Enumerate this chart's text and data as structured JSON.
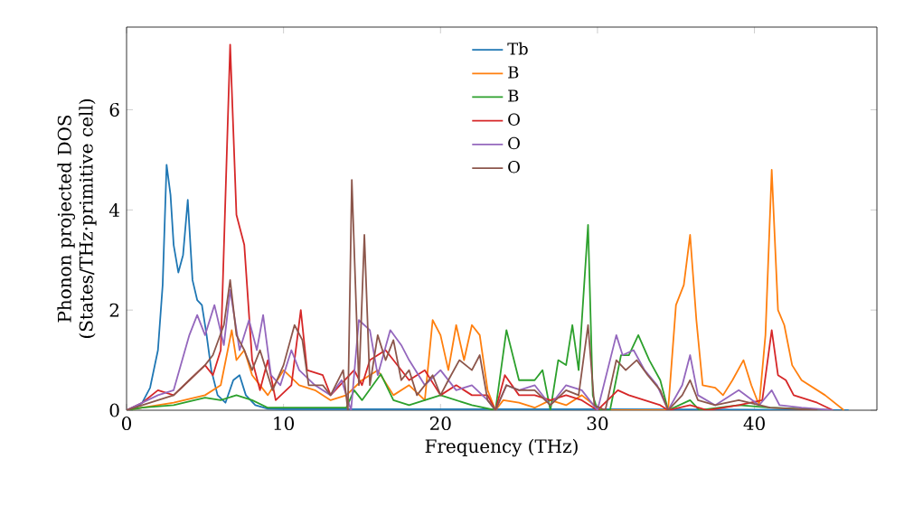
{
  "chart_data": {
    "type": "line",
    "xlabel": "Frequency (THz)",
    "ylabel": "Phonon projected DOS (States/THz·primitive cell)",
    "xlim": [
      0,
      47.8
    ],
    "ylim": [
      0,
      7.65
    ],
    "xticks": [
      0,
      10,
      20,
      30,
      40
    ],
    "yticks": [
      0,
      2,
      4,
      6
    ],
    "legend": "top",
    "series": [
      {
        "name": "Tb",
        "color": "#1f77b4",
        "x": [
          0,
          0.5,
          1,
          1.5,
          2,
          2.3,
          2.55,
          2.8,
          3.0,
          3.3,
          3.6,
          3.9,
          4.2,
          4.5,
          4.8,
          5.1,
          5.4,
          5.8,
          6.3,
          6.8,
          7.2,
          7.6,
          8.2,
          9,
          10,
          15,
          20,
          30,
          40,
          46
        ],
        "values": [
          0,
          0.03,
          0.15,
          0.45,
          1.2,
          2.5,
          4.9,
          4.3,
          3.3,
          2.75,
          3.1,
          4.2,
          2.6,
          2.2,
          2.1,
          1.5,
          0.8,
          0.3,
          0.15,
          0.6,
          0.7,
          0.3,
          0.1,
          0.03,
          0.02,
          0.02,
          0.02,
          0.02,
          0.01,
          0
        ]
      },
      {
        "name": "B",
        "color": "#ff7f0e",
        "x": [
          0,
          1,
          3,
          5,
          6,
          6.7,
          7,
          7.5,
          8,
          9,
          10,
          11,
          12,
          13,
          14,
          15,
          16,
          17,
          18,
          19,
          19.5,
          20,
          20.5,
          21,
          21.5,
          22,
          22.5,
          23,
          23.5,
          24,
          25,
          26,
          27,
          28,
          29,
          30,
          30.5,
          34.5,
          35,
          35.5,
          35.9,
          36.3,
          36.7,
          37.5,
          38,
          38.6,
          39.3,
          39.8,
          40.3,
          40.7,
          41.1,
          41.5,
          41.9,
          42.4,
          43,
          44.5,
          45.7
        ],
        "values": [
          0,
          0.05,
          0.15,
          0.3,
          0.5,
          1.6,
          1.0,
          1.2,
          0.7,
          0.3,
          0.8,
          0.5,
          0.4,
          0.2,
          0.3,
          0.6,
          0.8,
          0.3,
          0.5,
          0.2,
          1.8,
          1.5,
          0.8,
          1.7,
          1.0,
          1.7,
          1.5,
          0.4,
          0,
          0.2,
          0.15,
          0.05,
          0.2,
          0.1,
          0.3,
          0.05,
          0,
          0,
          2.1,
          2.5,
          3.5,
          1.8,
          0.5,
          0.45,
          0.3,
          0.6,
          1.0,
          0.5,
          0.1,
          1.5,
          4.8,
          2.0,
          1.7,
          0.9,
          0.6,
          0.3,
          0
        ]
      },
      {
        "name": "B",
        "color": "#2ca02c",
        "x": [
          0,
          1,
          3,
          5,
          6,
          7,
          8,
          9,
          14,
          14.5,
          15,
          16.2,
          17,
          18,
          20,
          22,
          23.5,
          24.2,
          25,
          26,
          26.5,
          27,
          27.5,
          28,
          28.4,
          28.8,
          29.4,
          29.7,
          30,
          30.8,
          31.5,
          32,
          32.6,
          33.3,
          34,
          34.5,
          35.9,
          36.5,
          39,
          41,
          45
        ],
        "values": [
          0,
          0.05,
          0.1,
          0.25,
          0.2,
          0.3,
          0.2,
          0.05,
          0.05,
          0.4,
          0.2,
          0.72,
          0.2,
          0.1,
          0.3,
          0.1,
          0,
          1.6,
          0.6,
          0.6,
          0.8,
          0,
          1.0,
          0.9,
          1.7,
          0.8,
          3.7,
          0.3,
          0,
          0,
          1.1,
          1.1,
          1.5,
          1.0,
          0.6,
          0,
          0.2,
          0,
          0.1,
          0.05,
          0
        ]
      },
      {
        "name": "O",
        "color": "#d62728",
        "x": [
          0,
          1,
          2,
          3,
          4,
          5,
          5.5,
          6,
          6.6,
          7.0,
          7.5,
          8,
          8.5,
          9,
          9.5,
          10.5,
          11.1,
          11.5,
          12.5,
          13,
          14.5,
          15,
          15.5,
          16.5,
          17,
          18,
          19,
          20,
          21,
          22,
          23,
          23.5,
          24.1,
          25,
          26,
          27,
          28,
          29,
          30,
          31.3,
          32,
          33,
          34,
          34.5,
          35.9,
          37,
          39,
          40.5,
          41.1,
          41.5,
          42,
          42.5,
          44,
          45
        ],
        "values": [
          0,
          0.15,
          0.4,
          0.3,
          0.6,
          0.9,
          0.7,
          1.2,
          7.3,
          3.9,
          3.3,
          1.0,
          0.4,
          1.0,
          0.2,
          0.5,
          2.0,
          0.8,
          0.7,
          0.3,
          0.8,
          0.5,
          1.0,
          1.2,
          1.0,
          0.6,
          0.8,
          0.3,
          0.5,
          0.3,
          0.3,
          0,
          0.7,
          0.3,
          0.3,
          0.2,
          0.3,
          0.2,
          0,
          0.4,
          0.3,
          0.2,
          0.1,
          0,
          0.1,
          0,
          0.1,
          0.2,
          1.6,
          0.7,
          0.6,
          0.3,
          0.15,
          0
        ]
      },
      {
        "name": "O",
        "color": "#9467bd",
        "x": [
          0,
          2,
          3,
          4,
          4.5,
          5,
          5.6,
          6.2,
          6.6,
          7.2,
          7.8,
          8.3,
          8.7,
          9.2,
          9.8,
          10.5,
          11,
          12,
          13,
          13.7,
          14.3,
          14.8,
          15.5,
          16,
          16.8,
          17.5,
          18,
          19,
          20,
          21,
          22,
          23,
          23.5,
          24.2,
          25,
          26,
          27,
          28,
          29,
          30,
          31.2,
          31.6,
          32.3,
          33,
          33.8,
          34.5,
          35.4,
          35.9,
          36.4,
          37.5,
          39,
          40.3,
          41.1,
          41.6,
          43,
          45
        ],
        "values": [
          0,
          0.3,
          0.4,
          1.5,
          1.9,
          1.5,
          2.1,
          1.3,
          2.4,
          1.2,
          1.8,
          1.2,
          1.9,
          0.7,
          0.5,
          1.2,
          0.8,
          0.5,
          0.3,
          0.6,
          0,
          1.8,
          1.6,
          0.7,
          1.6,
          1.3,
          1.0,
          0.5,
          0.8,
          0.4,
          0.5,
          0.2,
          0,
          0.5,
          0.4,
          0.5,
          0.1,
          0.5,
          0.4,
          0,
          1.5,
          1.1,
          1.2,
          0.8,
          0.5,
          0,
          0.5,
          1.1,
          0.3,
          0.1,
          0.4,
          0.1,
          0.4,
          0.1,
          0.05,
          0
        ]
      },
      {
        "name": "O",
        "color": "#8c564b",
        "x": [
          0,
          2,
          3,
          4,
          5,
          5.5,
          6.2,
          6.6,
          7,
          7.5,
          8,
          8.5,
          9.3,
          10,
          10.7,
          11.2,
          11.6,
          12.5,
          13,
          13.8,
          14.1,
          14.35,
          14.8,
          15.15,
          15.5,
          16,
          16.5,
          17,
          17.5,
          18,
          18.5,
          19.5,
          20,
          20.5,
          21.2,
          22,
          22.5,
          23,
          23.5,
          24.2,
          25,
          26,
          27,
          28,
          28.8,
          29.4,
          29.8,
          30.5,
          31.2,
          31.8,
          32.5,
          33.2,
          34,
          34.5,
          35.4,
          35.9,
          36.4,
          37.5,
          39,
          41,
          44
        ],
        "values": [
          0,
          0.2,
          0.3,
          0.6,
          0.9,
          1.1,
          1.7,
          2.6,
          1.5,
          1.2,
          0.8,
          1.2,
          0.4,
          0.9,
          1.7,
          1.4,
          0.5,
          0.5,
          0.3,
          0.8,
          0,
          4.6,
          0.5,
          3.5,
          0.5,
          1.5,
          1.0,
          1.4,
          0.6,
          0.8,
          0.3,
          0.7,
          0.3,
          0.6,
          1.0,
          0.8,
          1.1,
          0.2,
          0,
          0.5,
          0.4,
          0.4,
          0.1,
          0.4,
          0.3,
          1.7,
          0.1,
          0,
          1.0,
          0.8,
          1.0,
          0.7,
          0.4,
          0,
          0.3,
          0.6,
          0.2,
          0.1,
          0.2,
          0.05,
          0
        ]
      }
    ]
  }
}
